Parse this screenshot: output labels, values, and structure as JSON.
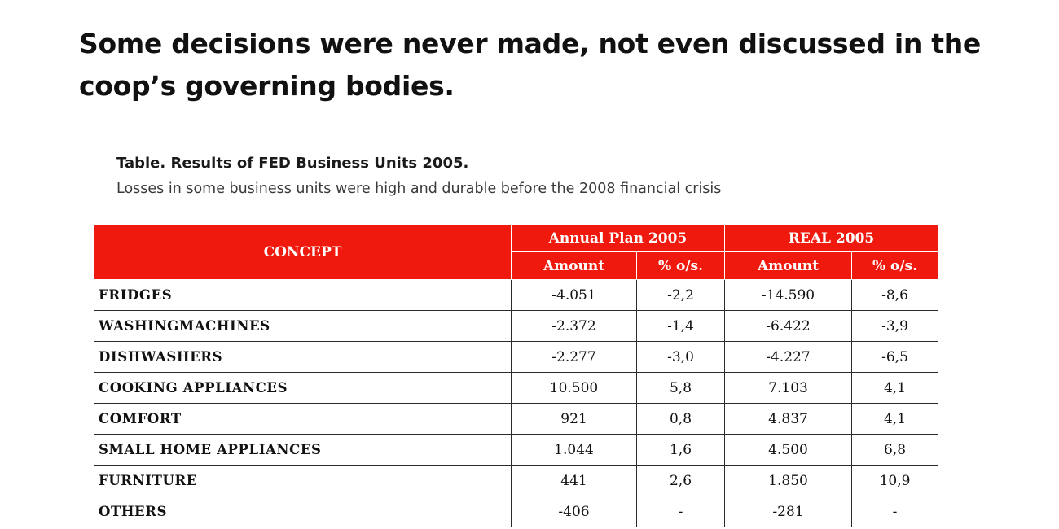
{
  "slide": {
    "heading": "Some decisions were never made, not even discussed in the coop’s governing bodies."
  },
  "caption": {
    "title": "Table. Results of FED Business Units 2005.",
    "subtitle": "Losses in some business units were high and durable before the 2008 financial crisis"
  },
  "table": {
    "header": {
      "concept": "CONCEPT",
      "plan_group": "Annual Plan 2005",
      "real_group": "REAL  2005",
      "plan_amount": "Amount",
      "plan_pct": "% o/s.",
      "real_amount": "Amount",
      "real_pct": "% o/s."
    },
    "accent_color": "#f0190e",
    "rows": [
      {
        "concept": "FRIDGES",
        "plan_amount": "-4.051",
        "plan_pct": "-2,2",
        "real_amount": "-14.590",
        "real_pct": "-8,6"
      },
      {
        "concept": "WASHINGMACHINES",
        "plan_amount": "-2.372",
        "plan_pct": "-1,4",
        "real_amount": "-6.422",
        "real_pct": "-3,9"
      },
      {
        "concept": "DISHWASHERS",
        "plan_amount": "-2.277",
        "plan_pct": "-3,0",
        "real_amount": "-4.227",
        "real_pct": "-6,5"
      },
      {
        "concept": "COOKING APPLIANCES",
        "plan_amount": "10.500",
        "plan_pct": "5,8",
        "real_amount": "7.103",
        "real_pct": "4,1"
      },
      {
        "concept": "COMFORT",
        "plan_amount": "921",
        "plan_pct": "0,8",
        "real_amount": "4.837",
        "real_pct": "4,1"
      },
      {
        "concept": "SMALL HOME APPLIANCES",
        "plan_amount": "1.044",
        "plan_pct": "1,6",
        "real_amount": "4.500",
        "real_pct": "6,8"
      },
      {
        "concept": "FURNITURE",
        "plan_amount": "441",
        "plan_pct": "2,6",
        "real_amount": "1.850",
        "real_pct": "10,9"
      },
      {
        "concept": "OTHERS",
        "plan_amount": "-406",
        "plan_pct": "-",
        "real_amount": "-281",
        "real_pct": "-"
      }
    ]
  }
}
